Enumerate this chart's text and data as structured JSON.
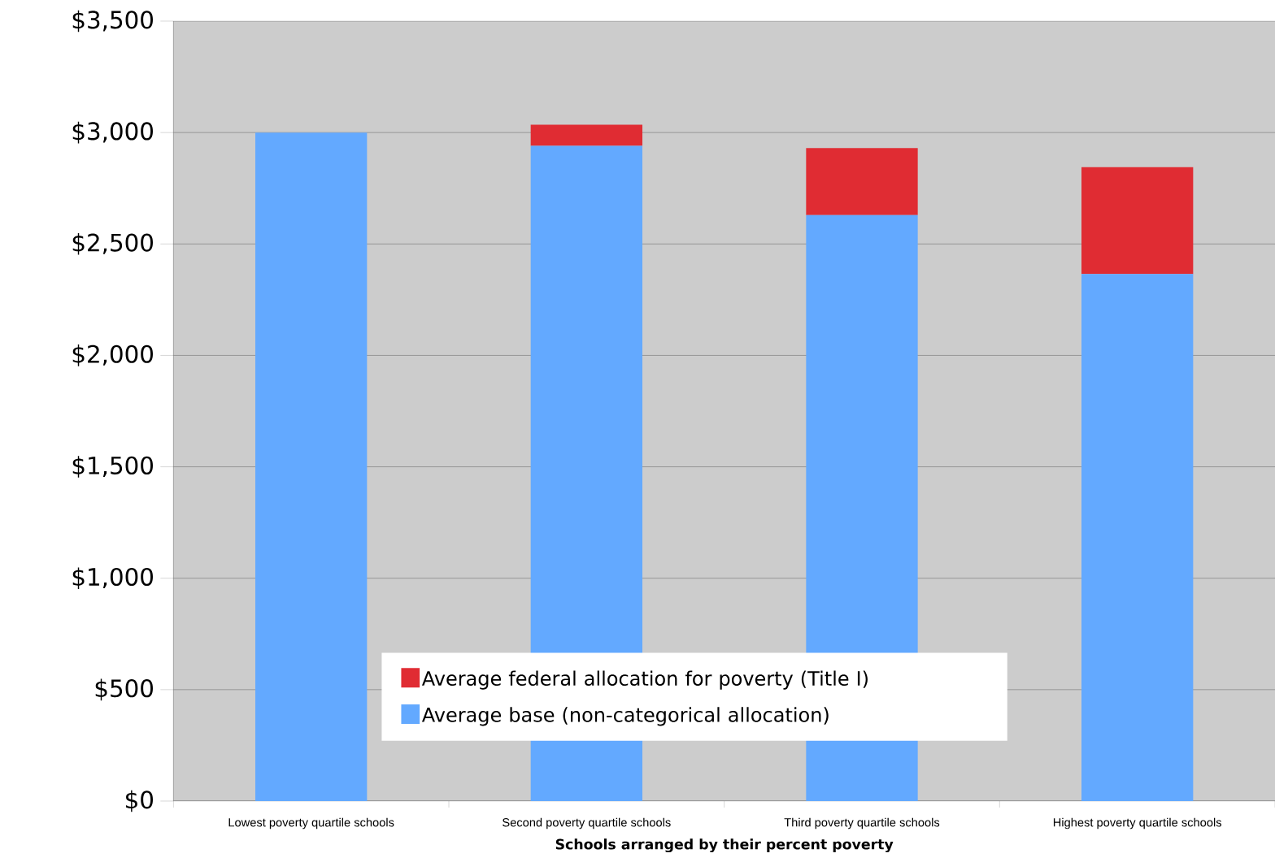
{
  "chart_data": {
    "type": "bar",
    "stacked": true,
    "xlabel": "Schools arranged by their percent poverty",
    "categories": [
      "Lowest poverty quartile schools",
      "Second poverty quartile schools",
      "Third poverty quartile schools",
      "Highest poverty quartile schools"
    ],
    "series": [
      {
        "name": "Average base (non-categorical allocation)",
        "color": "#63a9ff",
        "values": [
          3000,
          2940,
          2630,
          2365
        ]
      },
      {
        "name": "Average federal allocation for poverty (Title I)",
        "color": "#e02c33",
        "values": [
          0,
          95,
          300,
          480
        ]
      }
    ],
    "ylim": [
      0,
      3500
    ],
    "yticks": [
      {
        "value": 0,
        "label": "$0"
      },
      {
        "value": 500,
        "label": "$500"
      },
      {
        "value": 1000,
        "label": "$1,000"
      },
      {
        "value": 1500,
        "label": "$1,500"
      },
      {
        "value": 2000,
        "label": "$2,000"
      },
      {
        "value": 2500,
        "label": "$2,500"
      },
      {
        "value": 3000,
        "label": "$3,000"
      },
      {
        "value": 3500,
        "label": "$3,500"
      }
    ],
    "grid": "y",
    "legend": "bottom"
  }
}
